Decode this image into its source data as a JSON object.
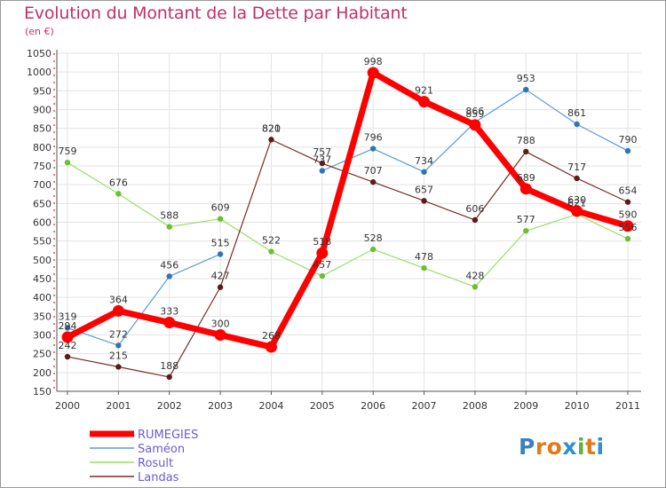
{
  "header": {
    "title": "Evolution du Montant de la Dette par Habitant",
    "unit": "(en €)"
  },
  "logo": {
    "letters": [
      "P",
      "r",
      "o",
      "x",
      "i",
      "t",
      "i"
    ],
    "colors": [
      "#3a7ec4",
      "#e07b1d",
      "#e07b1d",
      "#2f8fd1",
      "#5fb23a",
      "#e07b1d",
      "#2f8fd1"
    ]
  },
  "chart_data": {
    "type": "line",
    "title": "Evolution du Montant de la Dette par Habitant",
    "ylabel": "(en €)",
    "xlabel": "",
    "ylim": [
      150,
      1050
    ],
    "yticks": [
      150,
      200,
      250,
      300,
      350,
      400,
      450,
      500,
      550,
      600,
      650,
      700,
      750,
      800,
      850,
      900,
      950,
      1000,
      1050
    ],
    "grid": true,
    "legend_position": "bottom-left",
    "categories": [
      "2000",
      "2001",
      "2002",
      "2003",
      "2004",
      "2005",
      "2006",
      "2007",
      "2008",
      "2009",
      "2010",
      "2011"
    ],
    "series": [
      {
        "name": "Saméon",
        "color": "#5b9bd5",
        "marker_color": "#2e75b6",
        "values": [
          319,
          272,
          456,
          515,
          null,
          737,
          796,
          734,
          866,
          953,
          861,
          790
        ],
        "labels": [
          "319",
          "272",
          "456",
          "515",
          "",
          "737",
          "796",
          "734",
          "866",
          "953",
          "861",
          "790"
        ]
      },
      {
        "name": "Rosult",
        "color": "#99dd66",
        "marker_color": "#6cbf35",
        "values": [
          759,
          676,
          588,
          609,
          522,
          457,
          528,
          478,
          428,
          577,
          621,
          556
        ],
        "labels": [
          "759",
          "676",
          "588",
          "609",
          "522",
          "457",
          "528",
          "478",
          "428",
          "577",
          "621",
          "556"
        ]
      },
      {
        "name": "Landas",
        "color": "#7a2a2a",
        "marker_color": "#5e1a1a",
        "values": [
          242,
          215,
          188,
          427,
          820,
          757,
          707,
          657,
          606,
          788,
          717,
          654
        ],
        "labels": [
          "242",
          "215",
          "188",
          "427",
          "820",
          "757",
          "707",
          "657",
          "606",
          "788",
          "717",
          "654"
        ]
      },
      {
        "name": "RUMEGIES",
        "color": "#ff0000",
        "marker_color": "#ff0000",
        "values": [
          294,
          364,
          333,
          300,
          268,
          518,
          998,
          921,
          859,
          689,
          630,
          590
        ],
        "labels": [
          "294",
          "364",
          "333",
          "300",
          "268",
          "518",
          "998",
          "921",
          "859",
          "689",
          "630",
          "590"
        ]
      }
    ],
    "extra_labels": [
      "821"
    ],
    "legend": [
      "RUMEGIES",
      "Saméon",
      "Rosult",
      "Landas"
    ]
  }
}
